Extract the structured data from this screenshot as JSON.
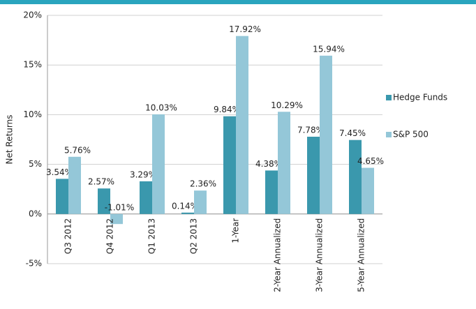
{
  "chart_data": {
    "type": "bar",
    "y_label": "Net Returns",
    "categories": [
      "Q3 2012",
      "Q4 2012",
      "Q1 2013",
      "Q2 2013",
      "1-Year",
      "2-Year Annualized",
      "3-Year Annualized",
      "5-Year Annualized"
    ],
    "series": [
      {
        "name": "Hedge Funds",
        "color": "#3a98ad",
        "values": [
          3.54,
          2.57,
          3.29,
          0.14,
          9.84,
          4.38,
          7.78,
          7.45
        ],
        "value_labels": [
          "3.54%",
          "2.57%",
          "3.29%",
          "0.14%",
          "9.84%",
          "4.38%",
          "7.78%",
          "7.45%"
        ]
      },
      {
        "name": "S&P 500",
        "color": "#94c7d8",
        "values": [
          5.76,
          -1.01,
          10.03,
          2.36,
          17.92,
          10.29,
          15.94,
          4.65
        ],
        "value_labels": [
          "5.76%",
          "-1.01%",
          "10.03%",
          "2.36%",
          "17.92%",
          "10.29%",
          "15.94%",
          "4.65%"
        ]
      }
    ],
    "ylim": [
      -5,
      20
    ],
    "yticks": [
      {
        "value": -5,
        "label": "-5%"
      },
      {
        "value": 0,
        "label": "0%"
      },
      {
        "value": 5,
        "label": "5%"
      },
      {
        "value": 10,
        "label": "10%"
      },
      {
        "value": 15,
        "label": "15%"
      },
      {
        "value": 20,
        "label": "20%"
      }
    ],
    "grid": true,
    "legend": "right"
  }
}
